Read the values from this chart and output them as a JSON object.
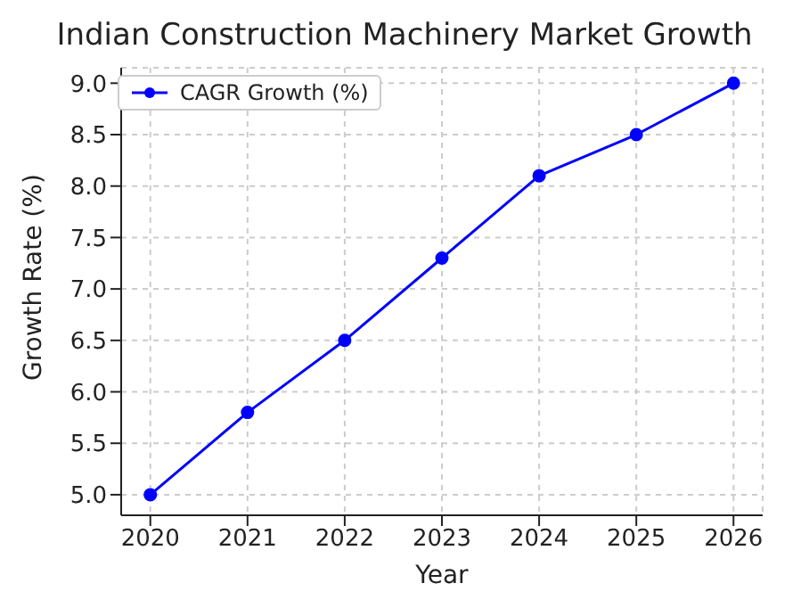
{
  "chart_data": {
    "type": "line",
    "title": "Indian Construction Machinery Market Growth",
    "xlabel": "Year",
    "ylabel": "Growth Rate (%)",
    "x": [
      2020,
      2021,
      2022,
      2023,
      2024,
      2025,
      2026
    ],
    "series": [
      {
        "name": "CAGR Growth (%)",
        "color": "#0000ff",
        "values": [
          5.0,
          5.8,
          6.5,
          7.3,
          8.1,
          8.5,
          9.0
        ]
      }
    ],
    "xlim": [
      2019.7,
      2026.3
    ],
    "xticks": [
      2020,
      2021,
      2022,
      2023,
      2024,
      2025,
      2026
    ],
    "ylim": [
      4.8,
      9.15
    ],
    "yticks": [
      {
        "value": 5,
        "label": "5.0"
      },
      {
        "value": 5.5,
        "label": "5.5"
      },
      {
        "value": 6,
        "label": "6.0"
      },
      {
        "value": 6.5,
        "label": "6.5"
      },
      {
        "value": 7,
        "label": "7.0"
      },
      {
        "value": 7.5,
        "label": "7.5"
      },
      {
        "value": 8,
        "label": "8.0"
      },
      {
        "value": 8.5,
        "label": "8.5"
      },
      {
        "value": 9,
        "label": "9.0"
      }
    ],
    "grid": true,
    "legend": "top left",
    "marker": "circle",
    "line_style": "solid"
  }
}
